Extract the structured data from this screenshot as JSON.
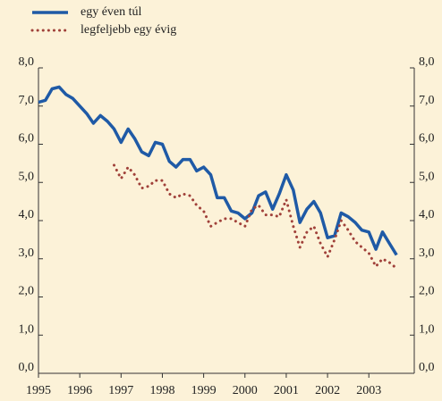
{
  "chart_data": {
    "type": "line",
    "series": [
      {
        "name": "egy éven túl",
        "color": "#1f5aa6",
        "style": "solid",
        "x": [
          1995.0,
          1995.17,
          1995.33,
          1995.5,
          1995.67,
          1995.83,
          1996.0,
          1996.17,
          1996.33,
          1996.5,
          1996.67,
          1996.83,
          1997.0,
          1997.17,
          1997.33,
          1997.5,
          1997.67,
          1997.83,
          1998.0,
          1998.17,
          1998.33,
          1998.5,
          1998.67,
          1998.83,
          1999.0,
          1999.17,
          1999.33,
          1999.5,
          1999.67,
          1999.83,
          2000.0,
          2000.17,
          2000.33,
          2000.5,
          2000.67,
          2000.83,
          2001.0,
          2001.17,
          2001.33,
          2001.5,
          2001.67,
          2001.83,
          2002.0,
          2002.17,
          2002.33,
          2002.5,
          2002.67,
          2002.83,
          2003.0,
          2003.17,
          2003.33,
          2003.5,
          2003.67
        ],
        "values": [
          7.1,
          7.15,
          7.45,
          7.5,
          7.3,
          7.2,
          7.0,
          6.8,
          6.55,
          6.75,
          6.6,
          6.4,
          6.05,
          6.4,
          6.15,
          5.8,
          5.7,
          6.05,
          6.0,
          5.55,
          5.4,
          5.6,
          5.6,
          5.3,
          5.4,
          5.2,
          4.6,
          4.6,
          4.25,
          4.2,
          4.05,
          4.2,
          4.65,
          4.75,
          4.3,
          4.7,
          5.2,
          4.8,
          3.95,
          4.3,
          4.5,
          4.2,
          3.55,
          3.6,
          4.2,
          4.1,
          3.95,
          3.75,
          3.7,
          3.25,
          3.7,
          3.4,
          3.1
        ]
      },
      {
        "name": "legfeljebb egy évig",
        "color": "#a0413a",
        "style": "dotted",
        "x": [
          1996.83,
          1997.0,
          1997.17,
          1997.33,
          1997.5,
          1997.67,
          1997.83,
          1998.0,
          1998.17,
          1998.33,
          1998.5,
          1998.67,
          1998.83,
          1999.0,
          1999.17,
          1999.33,
          1999.5,
          1999.67,
          1999.83,
          2000.0,
          2000.17,
          2000.33,
          2000.5,
          2000.67,
          2000.83,
          2001.0,
          2001.17,
          2001.33,
          2001.5,
          2001.67,
          2001.83,
          2002.0,
          2002.17,
          2002.33,
          2002.5,
          2002.67,
          2002.83,
          2003.0,
          2003.17,
          2003.33,
          2003.5,
          2003.67
        ],
        "values": [
          5.45,
          5.1,
          5.4,
          5.2,
          4.85,
          4.9,
          5.05,
          5.05,
          4.7,
          4.6,
          4.7,
          4.65,
          4.4,
          4.25,
          3.85,
          3.95,
          4.05,
          4.05,
          3.95,
          3.85,
          4.3,
          4.4,
          4.15,
          4.15,
          4.1,
          4.55,
          3.85,
          3.3,
          3.7,
          3.85,
          3.4,
          3.05,
          3.5,
          4.0,
          3.75,
          3.45,
          3.3,
          3.15,
          2.8,
          3.0,
          2.9,
          2.75
        ]
      }
    ],
    "xlim": [
      1995,
      2004.1
    ],
    "xticks": [
      1995,
      1996,
      1997,
      1998,
      1999,
      2000,
      2001,
      2002,
      2003
    ],
    "ylim": [
      0,
      8
    ],
    "yticks": [
      {
        "value": 0,
        "label": "0,0"
      },
      {
        "value": 1,
        "label": "1,0"
      },
      {
        "value": 2,
        "label": "2,0"
      },
      {
        "value": 3,
        "label": "3,0"
      },
      {
        "value": 4,
        "label": "4,0"
      },
      {
        "value": 5,
        "label": "5,0"
      },
      {
        "value": 6,
        "label": "6,0"
      },
      {
        "value": 7,
        "label": "7,0"
      },
      {
        "value": 8,
        "label": "8,0"
      }
    ],
    "legend": "top-left"
  }
}
